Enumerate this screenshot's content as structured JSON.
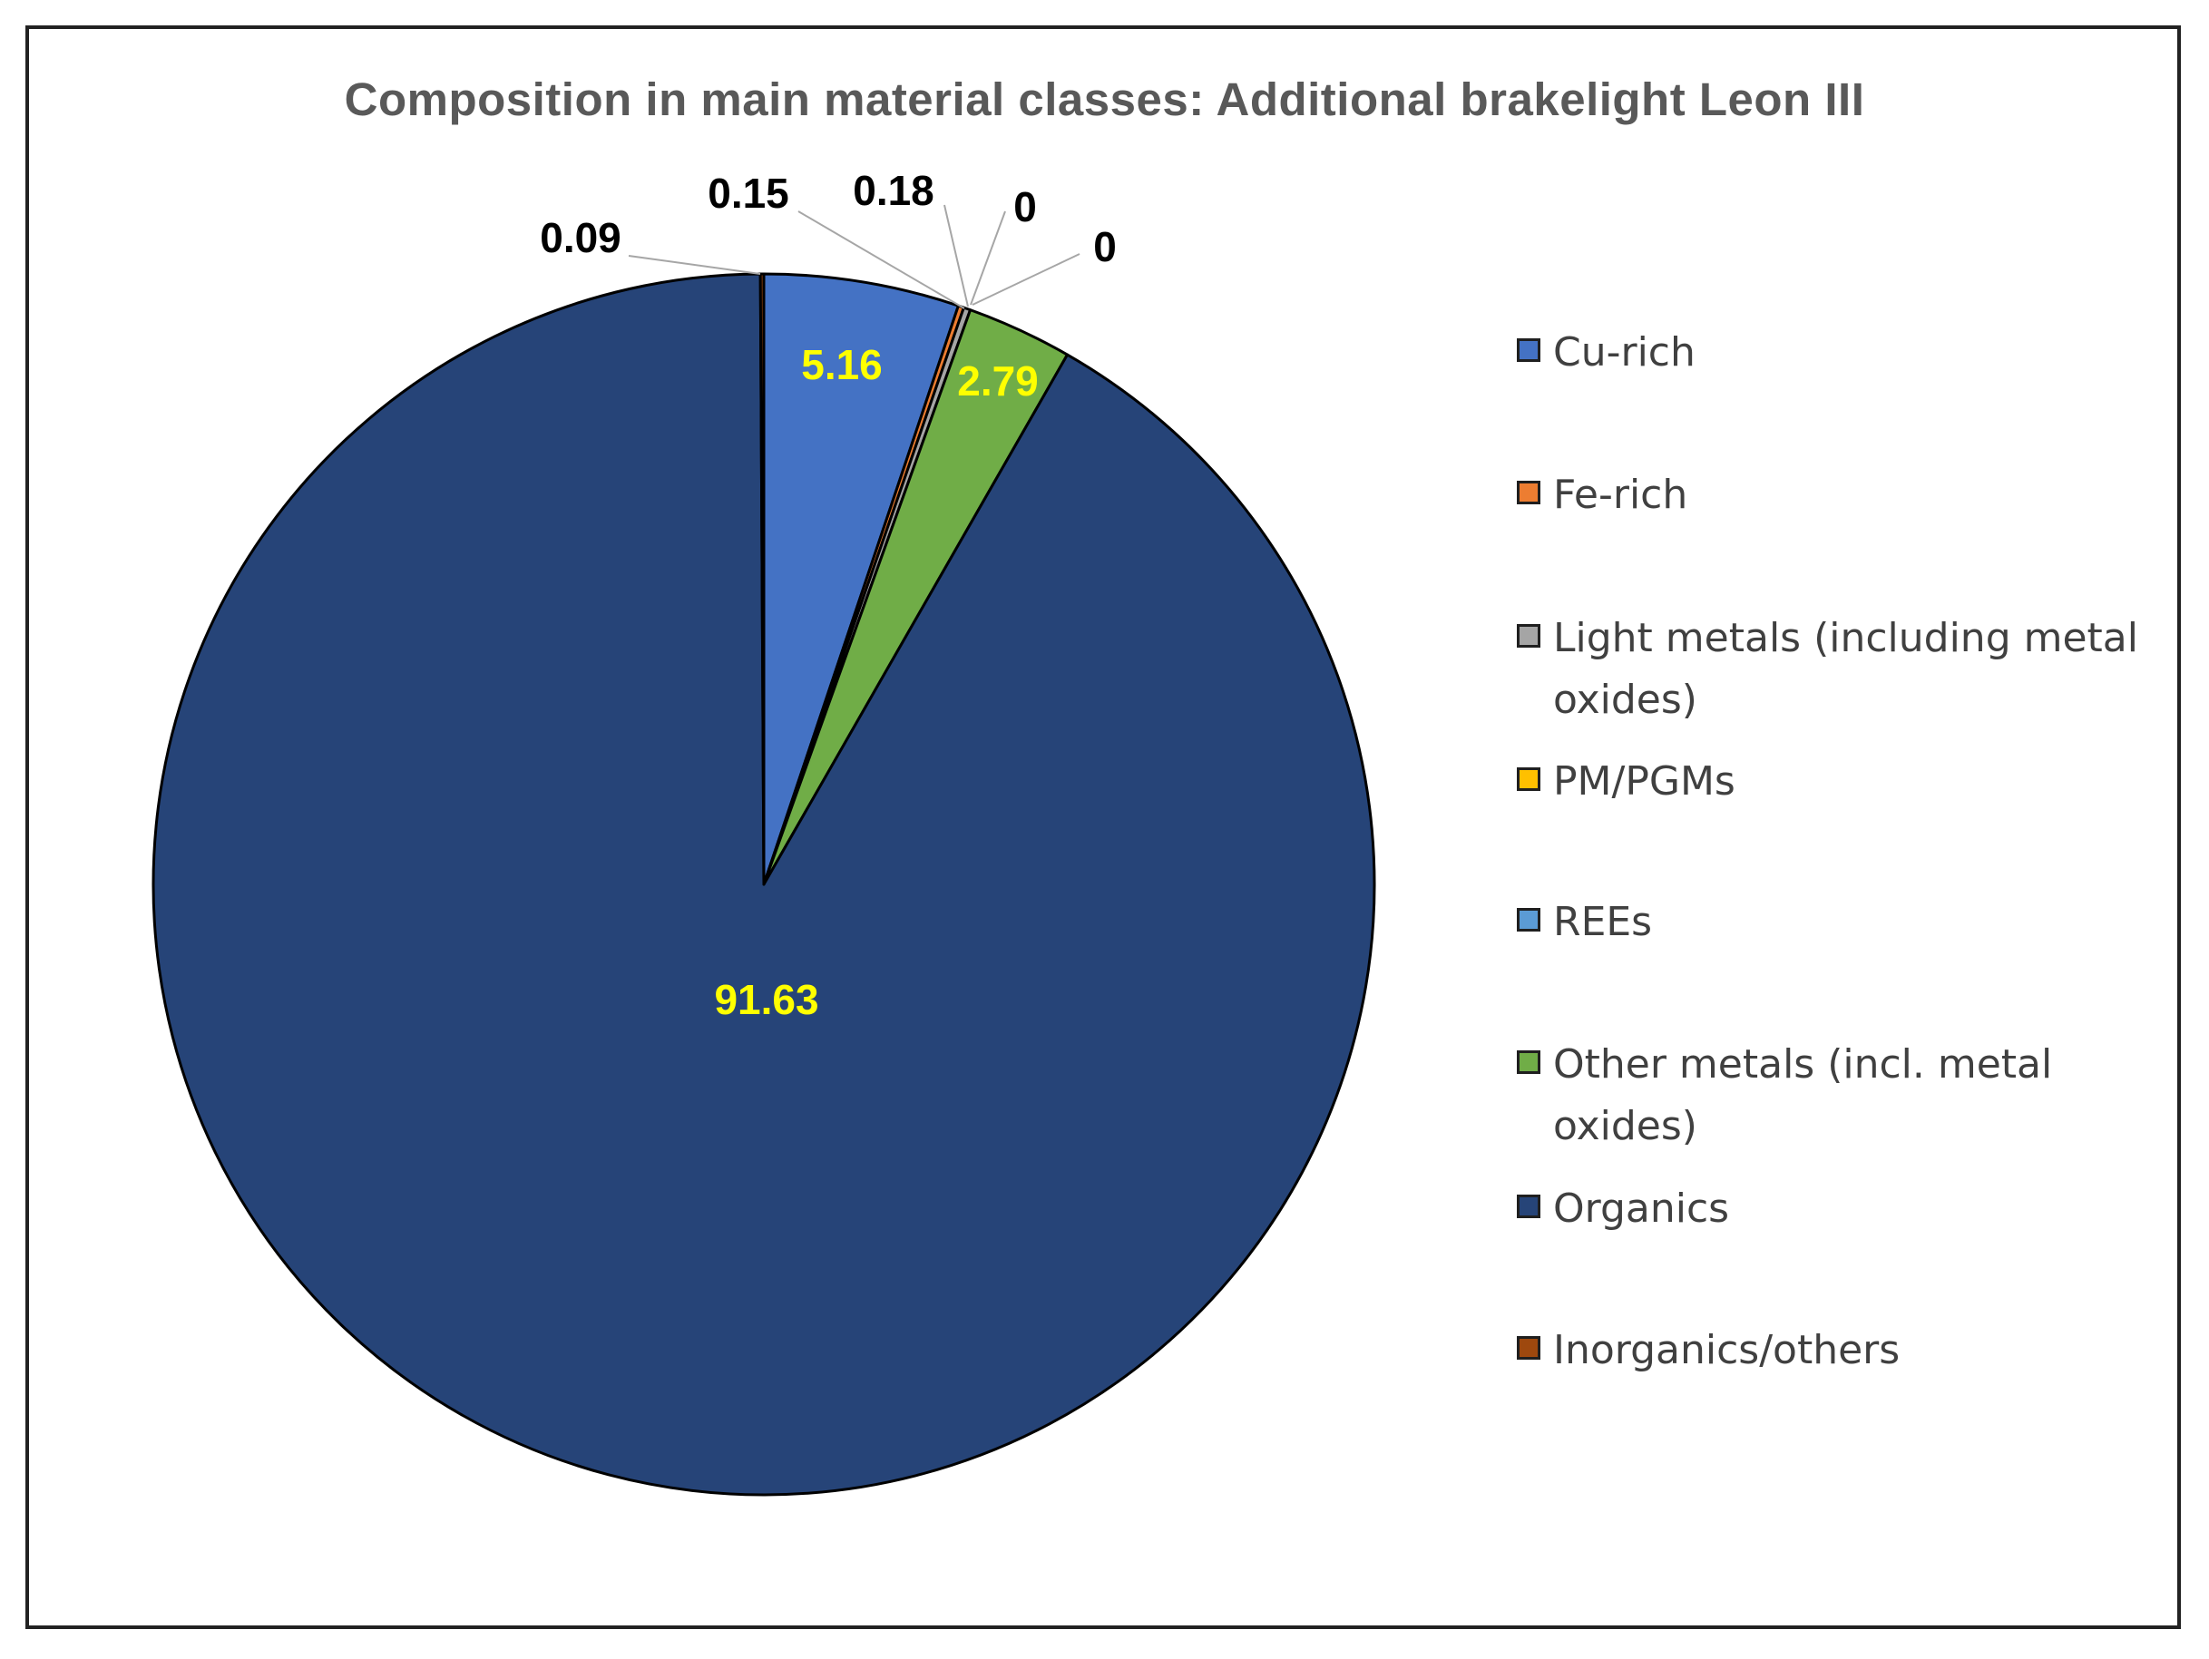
{
  "chart_data": {
    "type": "pie",
    "title": "Composition in main material classes: Additional brakelight Leon III",
    "start_angle_deg": 0,
    "direction": "clockwise",
    "legend_position": "right",
    "slices": [
      {
        "name": "Cu-rich",
        "value": 5.16,
        "label": "5.16",
        "color": "#4472C4",
        "label_color": "#FFFF00",
        "label_inside": true
      },
      {
        "name": "Fe-rich",
        "value": 0.15,
        "label": "0.15",
        "color": "#ED7D31",
        "label_color": "#000000",
        "label_inside": false
      },
      {
        "name": "Light metals (including metal oxides)",
        "value": 0.18,
        "label": "0.18",
        "color": "#A5A5A5",
        "label_color": "#000000",
        "label_inside": false
      },
      {
        "name": "PM/PGMs",
        "value": 0,
        "label": "0",
        "color": "#FFC000",
        "label_color": "#000000",
        "label_inside": false
      },
      {
        "name": "REEs",
        "value": 0,
        "label": "0",
        "color": "#5B9BD5",
        "label_color": "#000000",
        "label_inside": false
      },
      {
        "name": "Other metals (incl. metal oxides)",
        "value": 2.79,
        "label": "2.79",
        "color": "#70AD47",
        "label_color": "#FFFF00",
        "label_inside": true
      },
      {
        "name": "Organics",
        "value": 91.63,
        "label": "91.63",
        "color": "#264478",
        "label_color": "#FFFF00",
        "label_inside": true
      },
      {
        "name": "Inorganics/others",
        "value": 0.09,
        "label": "0.09",
        "color": "#9E480E",
        "label_color": "#000000",
        "label_inside": false
      }
    ]
  }
}
